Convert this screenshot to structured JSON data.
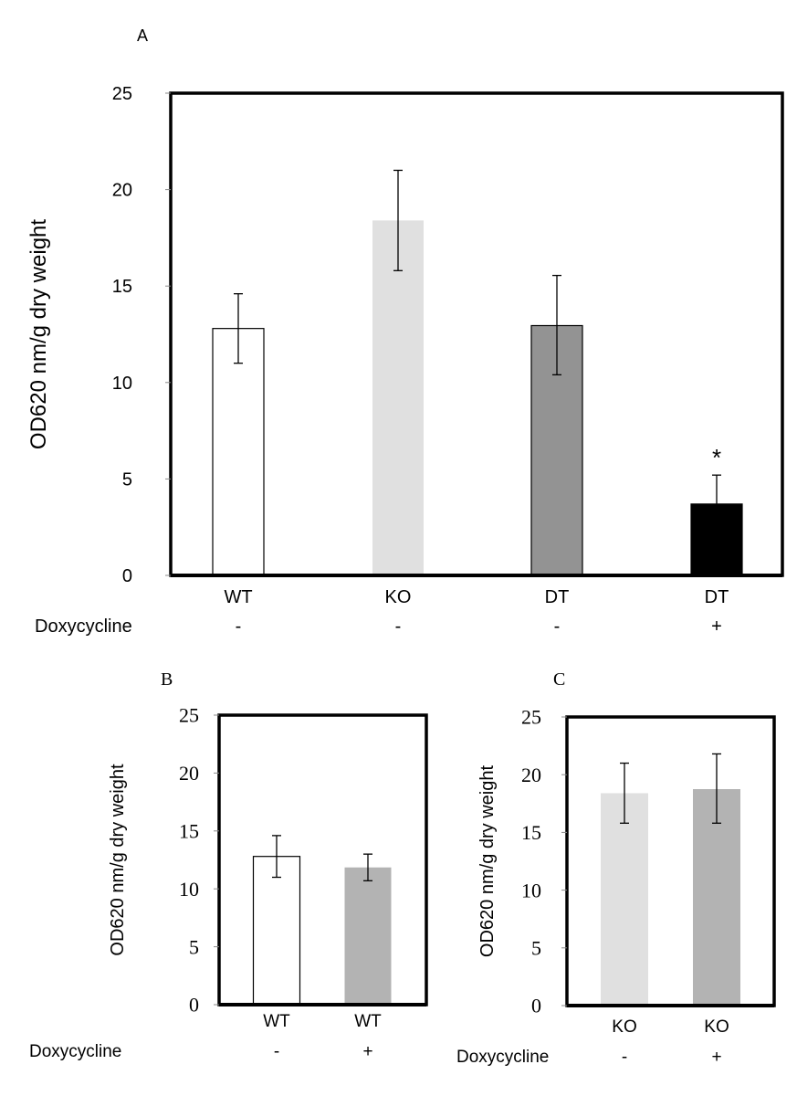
{
  "chart_data": [
    {
      "panel": "A",
      "type": "bar",
      "ylabel": "OD620 nm/g dry weight",
      "ylim": [
        0,
        25
      ],
      "yticks": [
        0,
        5,
        10,
        15,
        20,
        25
      ],
      "categories": [
        "WT",
        "KO",
        "DT",
        "DT"
      ],
      "row_label": "Doxycycline",
      "doxycycline": [
        "-",
        "-",
        "-",
        "+"
      ],
      "values": [
        12.8,
        18.4,
        12.95,
        3.7
      ],
      "error_low": [
        11.0,
        15.8,
        10.4,
        2.2
      ],
      "error_high": [
        14.6,
        21.0,
        15.55,
        5.2
      ],
      "colors": [
        "#ffffff",
        "#e0e0e0",
        "#939393",
        "#000000"
      ],
      "annotations": [
        "",
        "",
        "",
        "*"
      ],
      "grid": false
    },
    {
      "panel": "B",
      "type": "bar",
      "ylabel": "OD620 nm/g dry weight",
      "ylim": [
        0,
        25
      ],
      "yticks": [
        0,
        5,
        10,
        15,
        20,
        25
      ],
      "categories": [
        "WT",
        "WT"
      ],
      "row_label": "Doxycycline",
      "doxycycline": [
        "-",
        "+"
      ],
      "values": [
        12.8,
        11.85
      ],
      "error_low": [
        11.0,
        10.7
      ],
      "error_high": [
        14.6,
        13.0
      ],
      "colors": [
        "#ffffff",
        "#b3b3b3"
      ],
      "grid": false
    },
    {
      "panel": "C",
      "type": "bar",
      "ylabel": "OD620 nm/g dry weight",
      "ylim": [
        0,
        25
      ],
      "yticks": [
        0,
        5,
        10,
        15,
        20,
        25
      ],
      "categories": [
        "KO",
        "KO"
      ],
      "row_label": "Doxycycline",
      "doxycycline": [
        "-",
        "+"
      ],
      "values": [
        18.4,
        18.75
      ],
      "error_low": [
        15.8,
        15.8
      ],
      "error_high": [
        21.0,
        21.8
      ],
      "colors": [
        "#e0e0e0",
        "#b3b3b3"
      ],
      "grid": false
    }
  ]
}
